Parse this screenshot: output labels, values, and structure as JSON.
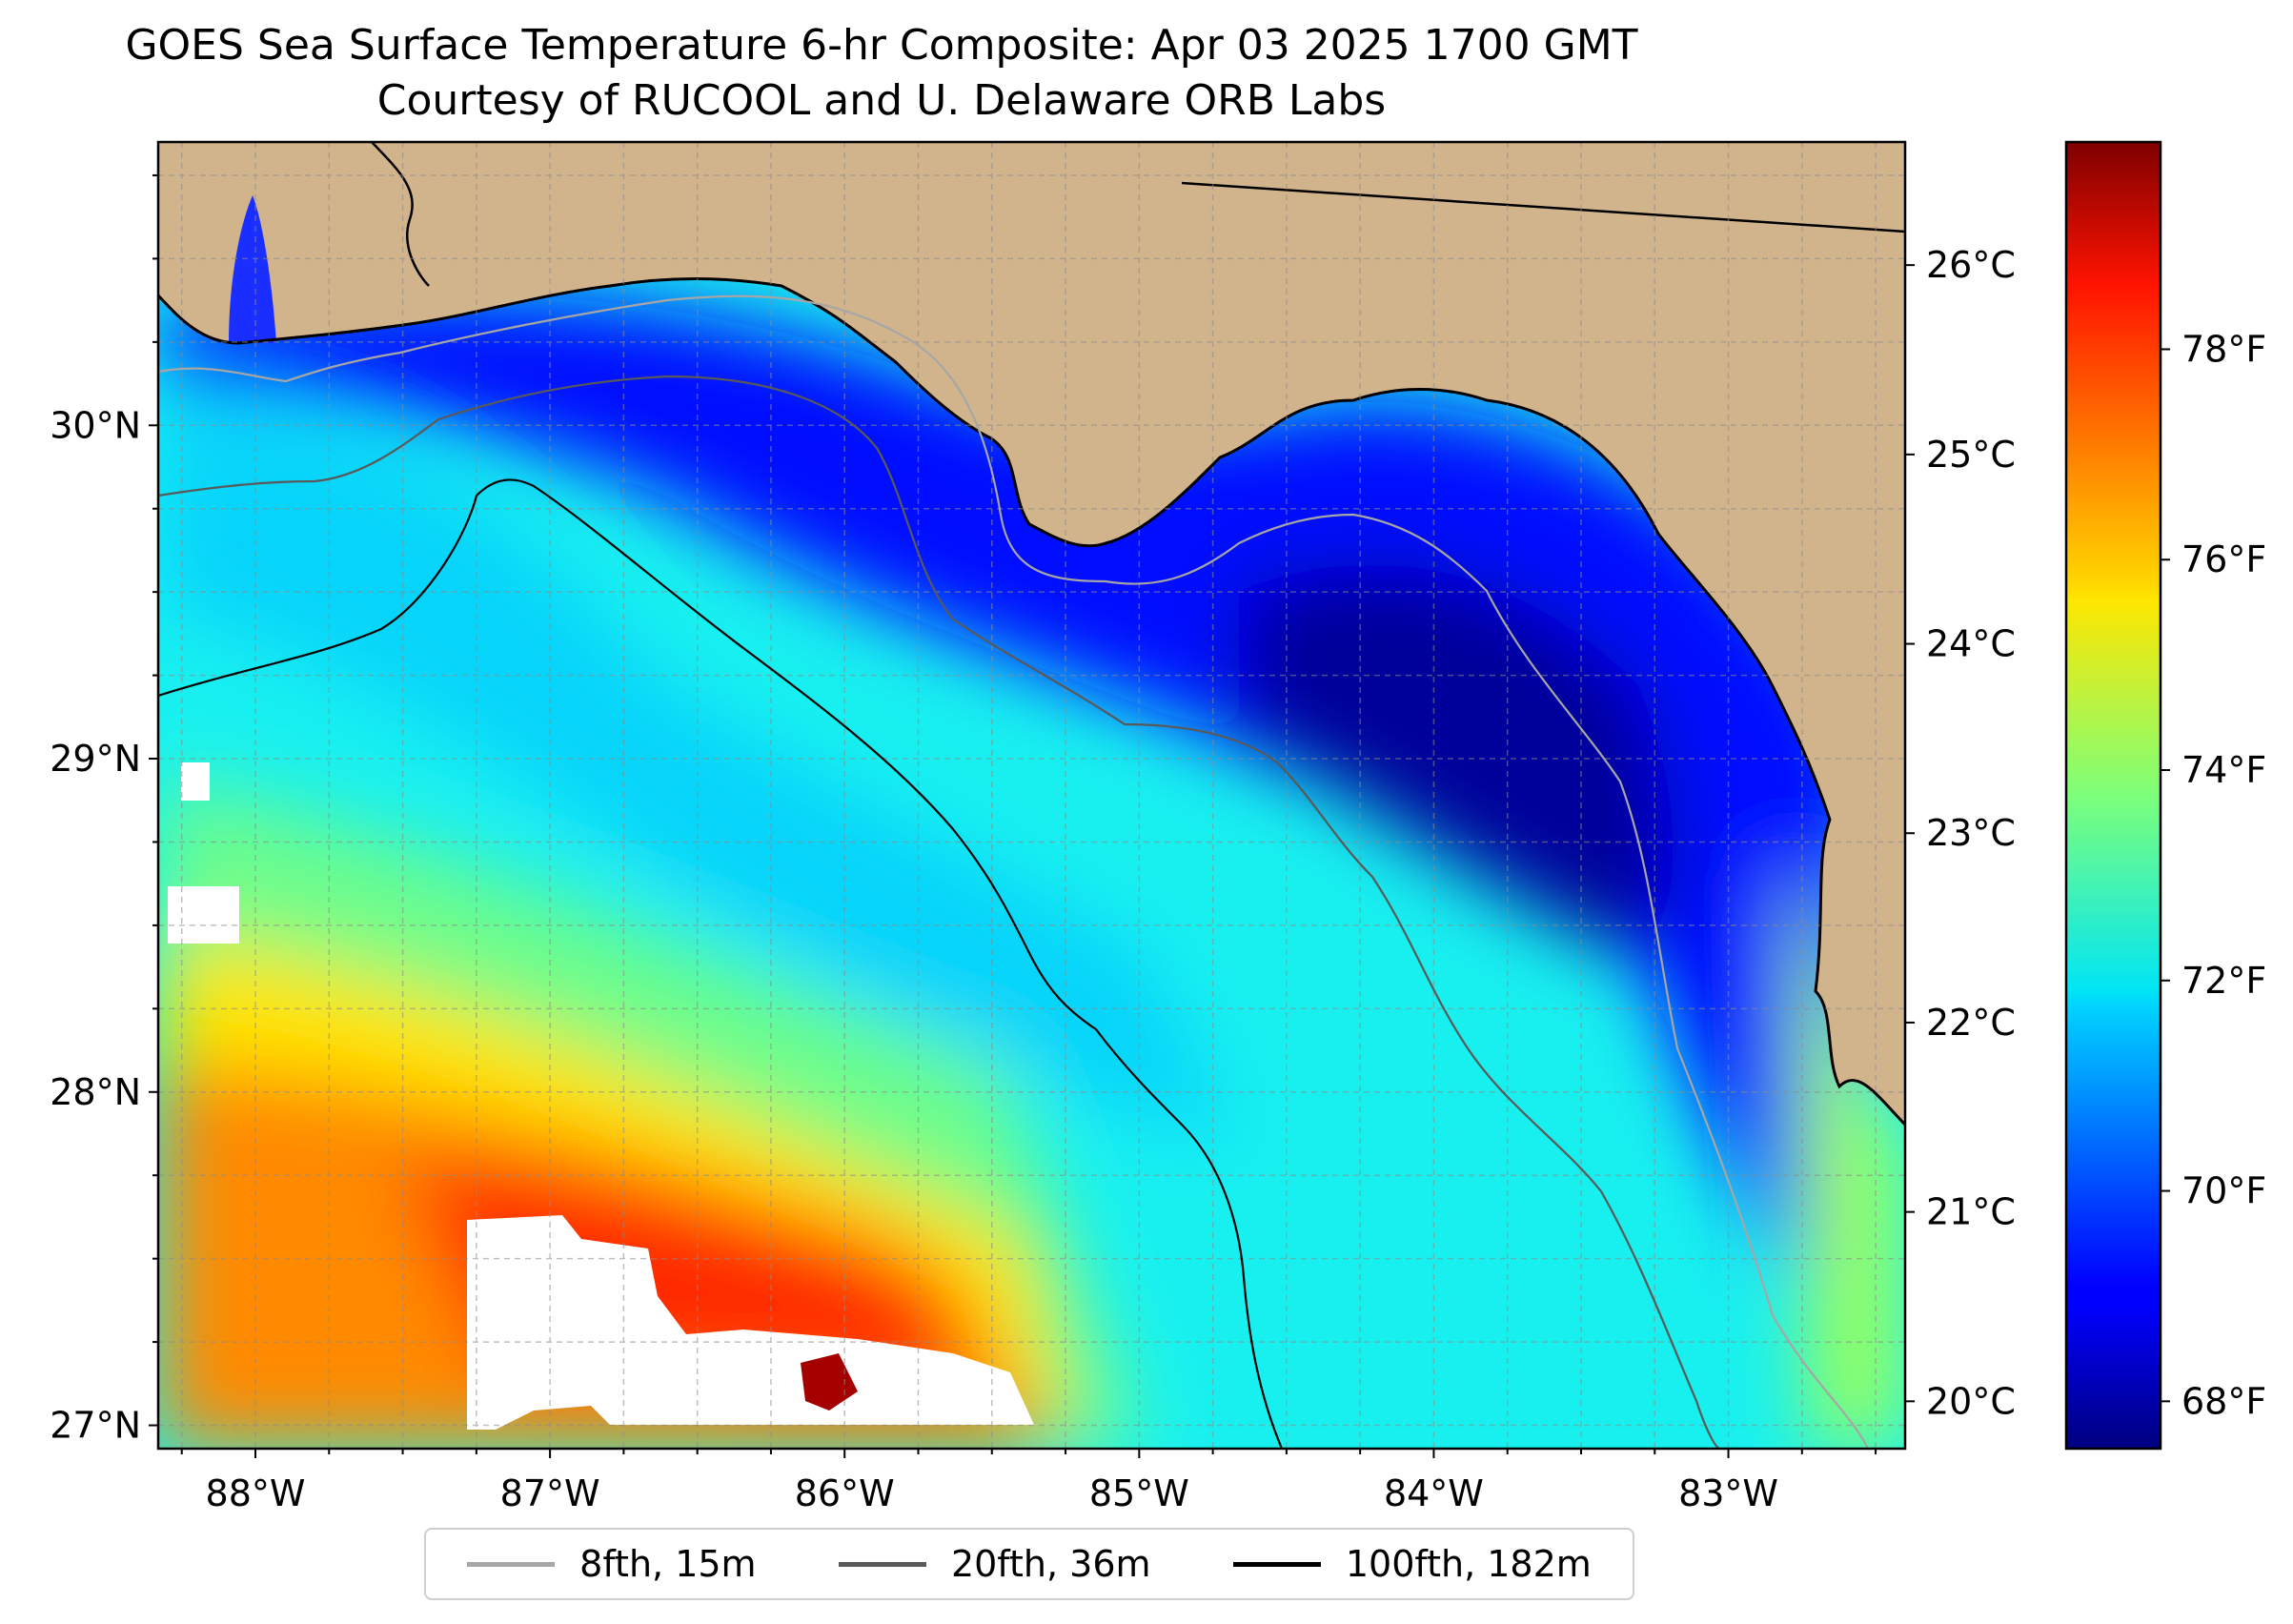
{
  "title": {
    "line1": "GOES Sea Surface Temperature 6-hr Composite: Apr 03 2025 1700 GMT",
    "line2": "Courtesy of RUCOOL and U. Delaware ORB Labs"
  },
  "map": {
    "lon_range": [
      -88.33,
      -82.4
    ],
    "lat_range": [
      26.93,
      30.85
    ],
    "longitude_ticks": [
      {
        "value": -88,
        "label": "88°W"
      },
      {
        "value": -87,
        "label": "87°W"
      },
      {
        "value": -86,
        "label": "86°W"
      },
      {
        "value": -85,
        "label": "85°W"
      },
      {
        "value": -84,
        "label": "84°W"
      },
      {
        "value": -83,
        "label": "83°W"
      }
    ],
    "latitude_ticks": [
      {
        "value": 27,
        "label": "27°N"
      },
      {
        "value": 28,
        "label": "28°N"
      },
      {
        "value": 29,
        "label": "29°N"
      },
      {
        "value": 30,
        "label": "30°N"
      }
    ],
    "gridlines": "dashed",
    "land_color": "#d2b48c"
  },
  "colorbar": {
    "colormap": "jet",
    "celsius_range": [
      19.75,
      26.65
    ],
    "celsius_ticks": [
      {
        "value": 20,
        "label": "20°C"
      },
      {
        "value": 21,
        "label": "21°C"
      },
      {
        "value": 22,
        "label": "22°C"
      },
      {
        "value": 23,
        "label": "23°C"
      },
      {
        "value": 24,
        "label": "24°C"
      },
      {
        "value": 25,
        "label": "25°C"
      },
      {
        "value": 26,
        "label": "26°C"
      }
    ],
    "fahrenheit_ticks": [
      {
        "value": 68,
        "label": "68°F"
      },
      {
        "value": 70,
        "label": "70°F"
      },
      {
        "value": 72,
        "label": "72°F"
      },
      {
        "value": 74,
        "label": "74°F"
      },
      {
        "value": 76,
        "label": "76°F"
      },
      {
        "value": 78,
        "label": "78°F"
      }
    ]
  },
  "legend": {
    "items": [
      {
        "label": "8fth, 15m",
        "color": "#a6a6a6"
      },
      {
        "label": "20fth, 36m",
        "color": "#595959"
      },
      {
        "label": "100fth, 182m",
        "color": "#000000"
      }
    ]
  }
}
